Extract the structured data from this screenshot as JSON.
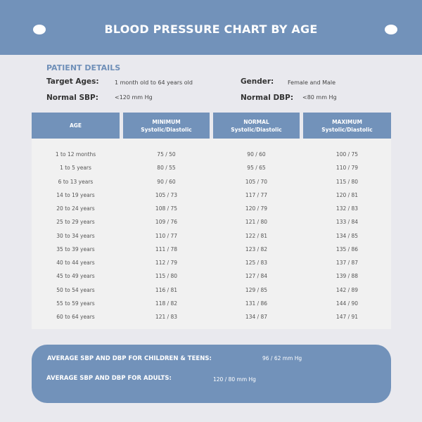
{
  "title": "BLOOD PRESSURE CHART BY AGE",
  "patient_details": {
    "heading": "PATIENT DETAILS",
    "target_ages_label": "Target Ages:",
    "target_ages_value": "1 month old to 64 years old",
    "gender_label": "Gender:",
    "gender_value": "Female and Male",
    "normal_sbp_label": "Normal SBP:",
    "normal_sbp_value": "<120 mm Hg",
    "normal_dbp_label": "Normal DBP:",
    "normal_dbp_value": "<80 mm Hg"
  },
  "table": {
    "headers": [
      {
        "top": "AGE",
        "bottom": ""
      },
      {
        "top": "MINIMUM",
        "bottom": "Systolic/Diastolic"
      },
      {
        "top": "NORMAL",
        "bottom": "Systolic/Diastolic"
      },
      {
        "top": "MAXIMUM",
        "bottom": "Systolic/Diastolic"
      }
    ],
    "rows": [
      [
        "1 to 12 months",
        "75 / 50",
        "90 / 60",
        "100 / 75"
      ],
      [
        "1 to 5 years",
        "80 / 55",
        "95 / 65",
        "110 / 79"
      ],
      [
        "6 to 13 years",
        "90 / 60",
        "105 / 70",
        "115 / 80"
      ],
      [
        "14 to 19 years",
        "105 / 73",
        "117 / 77",
        "120 / 81"
      ],
      [
        "20 to 24 years",
        "108 / 75",
        "120 / 79",
        "132 / 83"
      ],
      [
        "25 to 29 years",
        "109 / 76",
        "121 / 80",
        "133 / 84"
      ],
      [
        "30 to 34 years",
        "110 / 77",
        "122 / 81",
        "134 / 85"
      ],
      [
        "35 to 39 years",
        "111 / 78",
        "123 / 82",
        "135 / 86"
      ],
      [
        "40 to 44 years",
        "112 / 79",
        "125 / 83",
        "137 / 87"
      ],
      [
        "45 to 49 years",
        "115 / 80",
        "127 / 84",
        "139 / 88"
      ],
      [
        "50 to 54 years",
        "116 / 81",
        "129 / 85",
        "142 / 89"
      ],
      [
        "55 to 59 years",
        "118 / 82",
        "131 / 86",
        "144 / 90"
      ],
      [
        "60 to 64 years",
        "121 / 83",
        "134 / 87",
        "147 / 91"
      ]
    ]
  },
  "averages": {
    "children_label": "AVERAGE SBP AND DBP FOR CHILDREN & TEENS:",
    "children_value": "96 / 62 mm Hg",
    "adults_label": "AVERAGE SBP AND DBP FOR ADULTS:",
    "adults_value": "120 / 80 mm Hg"
  }
}
